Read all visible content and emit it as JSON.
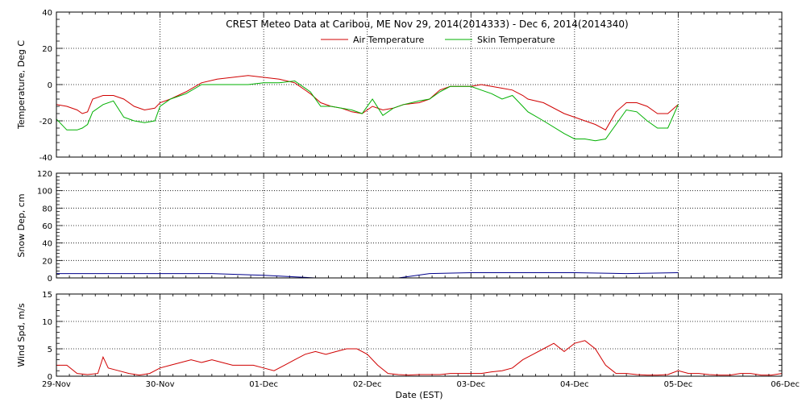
{
  "chart_data": [
    {
      "id": "temperature",
      "type": "line",
      "title": "CREST Meteo Data at Caribou, ME   Nov 29, 2014(2014333) - Dec  6, 2014(2014340)",
      "ylabel": "Temperature, Deg C",
      "ylim": [
        -40,
        40
      ],
      "yticks": [
        "-40",
        "-20",
        "0",
        "20",
        "40"
      ],
      "ytick_values": [
        -40,
        -20,
        0,
        20,
        40
      ],
      "xlim": [
        0,
        7
      ],
      "grid": true,
      "legend": "top-center",
      "series": [
        {
          "name": "Air Temperature",
          "color": "#d00000",
          "x": [
            0,
            0.1,
            0.2,
            0.25,
            0.3,
            0.35,
            0.45,
            0.55,
            0.65,
            0.75,
            0.85,
            0.95,
            1.0,
            1.1,
            1.25,
            1.4,
            1.55,
            1.7,
            1.85,
            2.0,
            2.15,
            2.3,
            2.45,
            2.55,
            2.65,
            2.75,
            2.85,
            2.95,
            3.05,
            3.15,
            3.25,
            3.35,
            3.5,
            3.6,
            3.7,
            3.8,
            3.9,
            4.0,
            4.1,
            4.2,
            4.3,
            4.4,
            4.5,
            4.55,
            4.7,
            4.9,
            5.0,
            5.1,
            5.2,
            5.3,
            5.4,
            5.5,
            5.6,
            5.7,
            5.8,
            5.9,
            6.0
          ],
          "y": [
            -11,
            -12,
            -14,
            -16,
            -15,
            -8,
            -6,
            -6,
            -8,
            -12,
            -14,
            -13,
            -10,
            -8,
            -4,
            1,
            3,
            4,
            5,
            4,
            3,
            1,
            -5,
            -10,
            -12,
            -13,
            -15,
            -16,
            -12,
            -14,
            -13,
            -11,
            -10,
            -8,
            -3,
            -1,
            -1,
            -1,
            0,
            -1,
            -2,
            -3,
            -6,
            -8,
            -10,
            -16,
            -18,
            -20,
            -22,
            -25,
            -15,
            -10,
            -10,
            -12,
            -16,
            -16,
            -11
          ]
        },
        {
          "name": "Skin Temperature",
          "color": "#00b000",
          "x": [
            0,
            0.1,
            0.2,
            0.25,
            0.3,
            0.35,
            0.45,
            0.55,
            0.65,
            0.75,
            0.85,
            0.95,
            1.0,
            1.1,
            1.25,
            1.4,
            1.55,
            1.7,
            1.85,
            2.0,
            2.15,
            2.3,
            2.45,
            2.55,
            2.65,
            2.75,
            2.85,
            2.95,
            3.05,
            3.15,
            3.25,
            3.35,
            3.5,
            3.6,
            3.7,
            3.8,
            3.9,
            4.0,
            4.1,
            4.2,
            4.3,
            4.4,
            4.5,
            4.55,
            4.7,
            4.9,
            5.0,
            5.1,
            5.2,
            5.3,
            5.4,
            5.5,
            5.6,
            5.7,
            5.8,
            5.9,
            6.0
          ],
          "y": [
            -19,
            -25,
            -25,
            -24,
            -22,
            -15,
            -11,
            -9,
            -18,
            -20,
            -21,
            -20,
            -12,
            -8,
            -5,
            0,
            0,
            0,
            0,
            1,
            1,
            2,
            -4,
            -12,
            -12,
            -13,
            -14,
            -16,
            -8,
            -17,
            -13,
            -11,
            -9,
            -8,
            -4,
            -1,
            -1,
            -1,
            -3,
            -5,
            -8,
            -6,
            -12,
            -15,
            -20,
            -27,
            -30,
            -30,
            -31,
            -30,
            -22,
            -14,
            -15,
            -20,
            -24,
            -24,
            -11
          ]
        }
      ]
    },
    {
      "id": "snow",
      "type": "line",
      "ylabel": "Snow Dep, cm",
      "ylim": [
        0,
        120
      ],
      "yticks": [
        "0",
        "20",
        "40",
        "60",
        "80",
        "100",
        "120"
      ],
      "ytick_values": [
        0,
        20,
        40,
        60,
        80,
        100,
        120
      ],
      "xlim": [
        0,
        7
      ],
      "grid": true,
      "series": [
        {
          "color": "#00008b",
          "x": [
            0,
            0.5,
            1.0,
            1.5,
            2.0,
            2.5,
            3.0,
            3.3,
            3.6,
            4.0,
            4.5,
            5.0,
            5.5,
            6.0
          ],
          "y": [
            5,
            5,
            5,
            5,
            3,
            0,
            0,
            0,
            5,
            6,
            6,
            6,
            5,
            6
          ]
        }
      ]
    },
    {
      "id": "wind",
      "type": "line",
      "ylabel": "Wind Spd, m/s",
      "ylim": [
        0,
        15
      ],
      "yticks": [
        "0",
        "5",
        "10",
        "15"
      ],
      "ytick_values": [
        0,
        5,
        10,
        15
      ],
      "xlim": [
        0,
        7
      ],
      "xlabel": "Date (EST)",
      "xticks": [
        "29-Nov",
        "30-Nov",
        "01-Dec",
        "02-Dec",
        "03-Dec",
        "04-Dec",
        "05-Dec",
        "06-Dec"
      ],
      "xtick_values": [
        0,
        1,
        2,
        3,
        4,
        5,
        6,
        7
      ],
      "grid": true,
      "series": [
        {
          "color": "#d00000",
          "x": [
            0,
            0.1,
            0.2,
            0.3,
            0.4,
            0.45,
            0.5,
            0.6,
            0.7,
            0.8,
            0.9,
            1.0,
            1.1,
            1.2,
            1.3,
            1.4,
            1.5,
            1.6,
            1.7,
            1.8,
            1.9,
            2.0,
            2.1,
            2.2,
            2.3,
            2.4,
            2.5,
            2.6,
            2.7,
            2.8,
            2.9,
            3.0,
            3.1,
            3.2,
            3.3,
            3.4,
            3.5,
            3.6,
            3.7,
            3.8,
            3.9,
            4.0,
            4.1,
            4.2,
            4.3,
            4.4,
            4.5,
            4.6,
            4.7,
            4.8,
            4.9,
            5.0,
            5.1,
            5.2,
            5.3,
            5.4,
            5.5,
            5.6,
            5.7,
            5.8,
            5.9,
            6.0,
            6.1,
            6.2,
            6.3,
            6.4,
            6.5,
            6.6,
            6.7,
            6.8,
            6.9,
            7.0
          ],
          "y": [
            2,
            2,
            0.5,
            0.3,
            0.5,
            3.5,
            1.5,
            1,
            0.5,
            0.2,
            0.5,
            1.5,
            2,
            2.5,
            3,
            2.5,
            3,
            2.5,
            2,
            2,
            2,
            1.5,
            1,
            2,
            3,
            4,
            4.5,
            4,
            4.5,
            5,
            5,
            4,
            2,
            0.5,
            0.3,
            0.2,
            0.3,
            0.3,
            0.3,
            0.5,
            0.5,
            0.5,
            0.5,
            0.8,
            1,
            1.5,
            3,
            4,
            5,
            6,
            4.5,
            6,
            6.5,
            5,
            2,
            0.5,
            0.5,
            0.3,
            0.2,
            0.2,
            0.3,
            1,
            0.5,
            0.5,
            0.3,
            0.2,
            0.2,
            0.5,
            0.5,
            0.2,
            0.2,
            0.5
          ]
        }
      ]
    }
  ]
}
